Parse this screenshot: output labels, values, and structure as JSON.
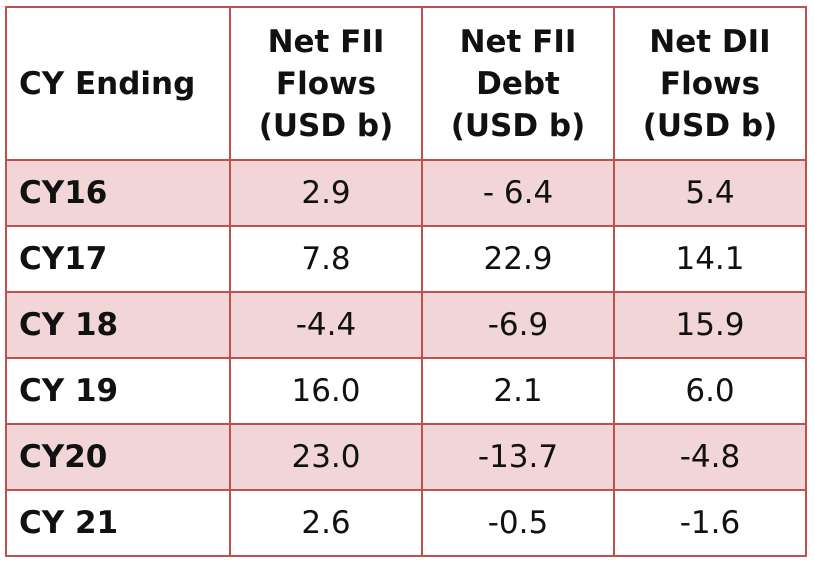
{
  "chart_data": {
    "type": "table",
    "columns": [
      {
        "lines": [
          "CY Ending"
        ]
      },
      {
        "lines": [
          "Net FII",
          "Flows",
          "(USD b)"
        ]
      },
      {
        "lines": [
          "Net FII",
          "Debt",
          "(USD b)"
        ]
      },
      {
        "lines": [
          "Net DII",
          "Flows",
          "(USD b)"
        ]
      }
    ],
    "rows": [
      {
        "label": "CY16",
        "values": [
          "2.9",
          "- 6.4",
          "5.4"
        ],
        "shaded": true
      },
      {
        "label": "CY17",
        "values": [
          "7.8",
          "22.9",
          "14.1"
        ],
        "shaded": false
      },
      {
        "label": "CY 18",
        "values": [
          "-4.4",
          "-6.9",
          "15.9"
        ],
        "shaded": true
      },
      {
        "label": "CY 19",
        "values": [
          "16.0",
          "2.1",
          "6.0"
        ],
        "shaded": false
      },
      {
        "label": "CY20",
        "values": [
          "23.0",
          "-13.7",
          "-4.8"
        ],
        "shaded": true
      },
      {
        "label": "CY 21",
        "values": [
          "2.6",
          "-0.5",
          "-1.6"
        ],
        "shaded": false
      }
    ],
    "colors": {
      "border": "#c0504d",
      "shaded_row": "#f2d5d6"
    }
  }
}
